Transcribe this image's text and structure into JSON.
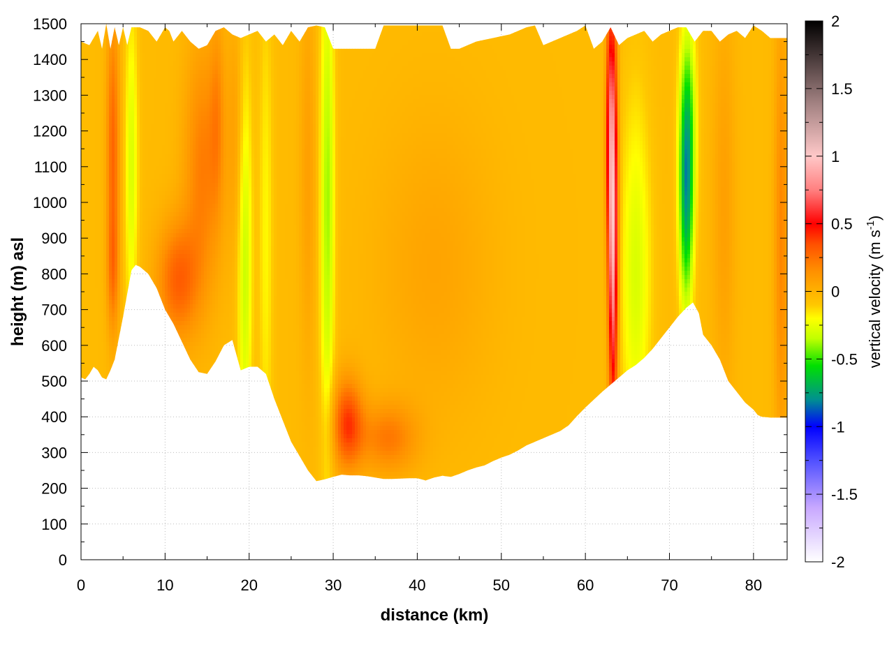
{
  "chart_data": {
    "type": "heatmap",
    "title": "",
    "xlabel": "distance (km)",
    "ylabel": "height (m) asl",
    "colorbar_label": {
      "main": "vertical velocity (m s",
      "exponent": "-1",
      "close": ")"
    },
    "xlim": [
      0,
      84
    ],
    "ylim": [
      0,
      1500
    ],
    "x_ticks": [
      0,
      10,
      20,
      30,
      40,
      50,
      60,
      70,
      80
    ],
    "x_tick_labels": [
      "0",
      "10",
      "20",
      "30",
      "40",
      "50",
      "60",
      "70",
      "80"
    ],
    "y_ticks": [
      0,
      100,
      200,
      300,
      400,
      500,
      600,
      700,
      800,
      900,
      1000,
      1100,
      1200,
      1300,
      1400,
      1500
    ],
    "y_tick_labels": [
      "0",
      "100",
      "200",
      "300",
      "400",
      "500",
      "600",
      "700",
      "800",
      "900",
      "1000",
      "1100",
      "1200",
      "1300",
      "1400",
      "1500"
    ],
    "clim": [
      -2,
      2
    ],
    "cb_ticks": [
      -2,
      -1.5,
      -1,
      -0.5,
      0,
      0.5,
      1,
      1.5,
      2
    ],
    "cb_tick_labels": [
      "-2",
      "-1.5",
      "-1",
      "-0.5",
      "0",
      "0.5",
      "1",
      "1.5",
      "2"
    ],
    "grid": true,
    "colormap": [
      {
        "value": -2.0,
        "color": "#ffffff"
      },
      {
        "value": -1.6,
        "color": "#c8a8ff"
      },
      {
        "value": -1.25,
        "color": "#5050ff"
      },
      {
        "value": -1.0,
        "color": "#0000ff"
      },
      {
        "value": -0.8,
        "color": "#009090"
      },
      {
        "value": -0.55,
        "color": "#00e000"
      },
      {
        "value": -0.35,
        "color": "#c0ff00"
      },
      {
        "value": -0.2,
        "color": "#ffff00"
      },
      {
        "value": -0.1,
        "color": "#ffc800"
      },
      {
        "value": 0.15,
        "color": "#ff9000"
      },
      {
        "value": 0.35,
        "color": "#ff5000"
      },
      {
        "value": 0.5,
        "color": "#ff0000"
      },
      {
        "value": 0.75,
        "color": "#ff8080"
      },
      {
        "value": 1.0,
        "color": "#ffc8c8"
      },
      {
        "value": 1.4,
        "color": "#a08080"
      },
      {
        "value": 2.0,
        "color": "#000000"
      }
    ],
    "terrain": {
      "x": [
        0,
        0.5,
        1,
        1.5,
        2,
        2.5,
        3,
        3.5,
        4,
        5,
        6,
        6.5,
        7,
        8,
        9,
        10,
        11,
        12,
        13,
        14,
        15,
        16,
        17,
        18,
        19,
        20,
        21,
        22,
        23,
        24,
        25,
        26,
        27,
        28,
        29,
        30,
        31,
        32,
        33,
        34,
        35,
        36,
        37,
        38,
        39,
        40,
        41,
        42,
        43,
        44,
        45,
        46,
        47,
        48,
        49,
        50,
        51,
        52,
        53,
        54,
        55,
        56,
        57,
        58,
        59,
        60,
        61,
        62,
        63,
        64,
        65,
        66,
        67,
        68,
        69,
        70,
        71,
        72,
        72.8,
        73.5,
        74,
        75,
        76,
        77,
        78,
        79,
        80,
        80.5,
        81,
        82,
        83,
        84
      ],
      "y": [
        510,
        505,
        520,
        540,
        530,
        510,
        505,
        530,
        560,
        680,
        810,
        825,
        820,
        800,
        760,
        700,
        660,
        610,
        560,
        525,
        520,
        555,
        600,
        615,
        530,
        540,
        540,
        520,
        450,
        390,
        330,
        290,
        250,
        220,
        225,
        232,
        238,
        236,
        236,
        234,
        230,
        226,
        226,
        227,
        228,
        228,
        222,
        230,
        235,
        232,
        240,
        250,
        258,
        264,
        276,
        286,
        294,
        306,
        320,
        330,
        340,
        350,
        360,
        376,
        402,
        426,
        448,
        470,
        490,
        510,
        530,
        545,
        565,
        590,
        620,
        650,
        680,
        705,
        720,
        690,
        630,
        600,
        560,
        500,
        470,
        440,
        420,
        405,
        400,
        398,
        398,
        398
      ]
    },
    "top": {
      "x": [
        0,
        1,
        2,
        2.5,
        3,
        3.5,
        4,
        4.5,
        5,
        5.5,
        6,
        7,
        8,
        9,
        10,
        10.5,
        11,
        12,
        13,
        14,
        15,
        16,
        17,
        18,
        19,
        20,
        21,
        22,
        23,
        24,
        25,
        26,
        27,
        28,
        29,
        30,
        31,
        32,
        33,
        34,
        35,
        36,
        37,
        38,
        39,
        40,
        41,
        42,
        43,
        44,
        45,
        46,
        47,
        48,
        49,
        50,
        51,
        52,
        53,
        54,
        55,
        56,
        57,
        58,
        59,
        60,
        61,
        62,
        63,
        64,
        65,
        66,
        67,
        68,
        69,
        70,
        71,
        72,
        73,
        74,
        75,
        76,
        77,
        78,
        79,
        80,
        81,
        82,
        83,
        84
      ],
      "y": [
        1450,
        1440,
        1480,
        1430,
        1500,
        1430,
        1490,
        1440,
        1490,
        1440,
        1490,
        1490,
        1480,
        1450,
        1490,
        1480,
        1450,
        1480,
        1450,
        1430,
        1440,
        1480,
        1490,
        1470,
        1460,
        1470,
        1480,
        1450,
        1470,
        1440,
        1480,
        1450,
        1490,
        1495,
        1490,
        1430,
        1430,
        1430,
        1430,
        1430,
        1430,
        1495,
        1495,
        1495,
        1495,
        1495,
        1495,
        1495,
        1495,
        1430,
        1430,
        1440,
        1450,
        1455,
        1460,
        1465,
        1470,
        1480,
        1490,
        1495,
        1440,
        1450,
        1460,
        1470,
        1480,
        1495,
        1430,
        1450,
        1490,
        1440,
        1460,
        1470,
        1480,
        1450,
        1470,
        1480,
        1490,
        1490,
        1450,
        1480,
        1480,
        1450,
        1470,
        1480,
        1460,
        1495,
        1480,
        1460,
        1460,
        1460
      ]
    },
    "velocity_features": [
      {
        "x": 3.8,
        "y": 1150,
        "sx": 0.55,
        "sy": 280,
        "v": 0.32
      },
      {
        "x": 3.8,
        "y": 800,
        "sx": 0.5,
        "sy": 120,
        "v": 0.18
      },
      {
        "x": 6.0,
        "y": 1100,
        "sx": 0.55,
        "sy": 320,
        "v": -0.25
      },
      {
        "x": 11.5,
        "y": 780,
        "sx": 1.8,
        "sy": 120,
        "v": 0.33
      },
      {
        "x": 14.5,
        "y": 1100,
        "sx": 1.6,
        "sy": 250,
        "v": 0.25
      },
      {
        "x": 16.2,
        "y": 1250,
        "sx": 0.6,
        "sy": 200,
        "v": 0.15
      },
      {
        "x": 19.5,
        "y": 850,
        "sx": 0.6,
        "sy": 400,
        "v": -0.3
      },
      {
        "x": 18.5,
        "y": 1200,
        "sx": 0.8,
        "sy": 250,
        "v": 0.12
      },
      {
        "x": 22.0,
        "y": 900,
        "sx": 0.6,
        "sy": 500,
        "v": -0.15
      },
      {
        "x": 27.0,
        "y": 1100,
        "sx": 0.7,
        "sy": 400,
        "v": 0.12
      },
      {
        "x": 29.3,
        "y": 1000,
        "sx": 0.6,
        "sy": 500,
        "v": -0.35
      },
      {
        "x": 31.7,
        "y": 380,
        "sx": 1.3,
        "sy": 90,
        "v": 0.42
      },
      {
        "x": 36.5,
        "y": 340,
        "sx": 2.5,
        "sy": 70,
        "v": 0.25
      },
      {
        "x": 42.0,
        "y": 820,
        "sx": 5.0,
        "sy": 300,
        "v": 0.1
      },
      {
        "x": 63.3,
        "y": 950,
        "sx": 0.38,
        "sy": 380,
        "v": 1.0
      },
      {
        "x": 62.8,
        "y": 1200,
        "sx": 0.3,
        "sy": 250,
        "v": 0.4
      },
      {
        "x": 66.0,
        "y": 800,
        "sx": 1.3,
        "sy": 350,
        "v": -0.25
      },
      {
        "x": 72.0,
        "y": 1000,
        "sx": 0.6,
        "sy": 220,
        "v": -0.6
      },
      {
        "x": 72.2,
        "y": 1250,
        "sx": 0.7,
        "sy": 200,
        "v": -0.35
      },
      {
        "x": 76.5,
        "y": 1000,
        "sx": 1.0,
        "sy": 400,
        "v": 0.12
      },
      {
        "x": 83.3,
        "y": 900,
        "sx": 0.6,
        "sy": 450,
        "v": 0.22
      }
    ]
  }
}
